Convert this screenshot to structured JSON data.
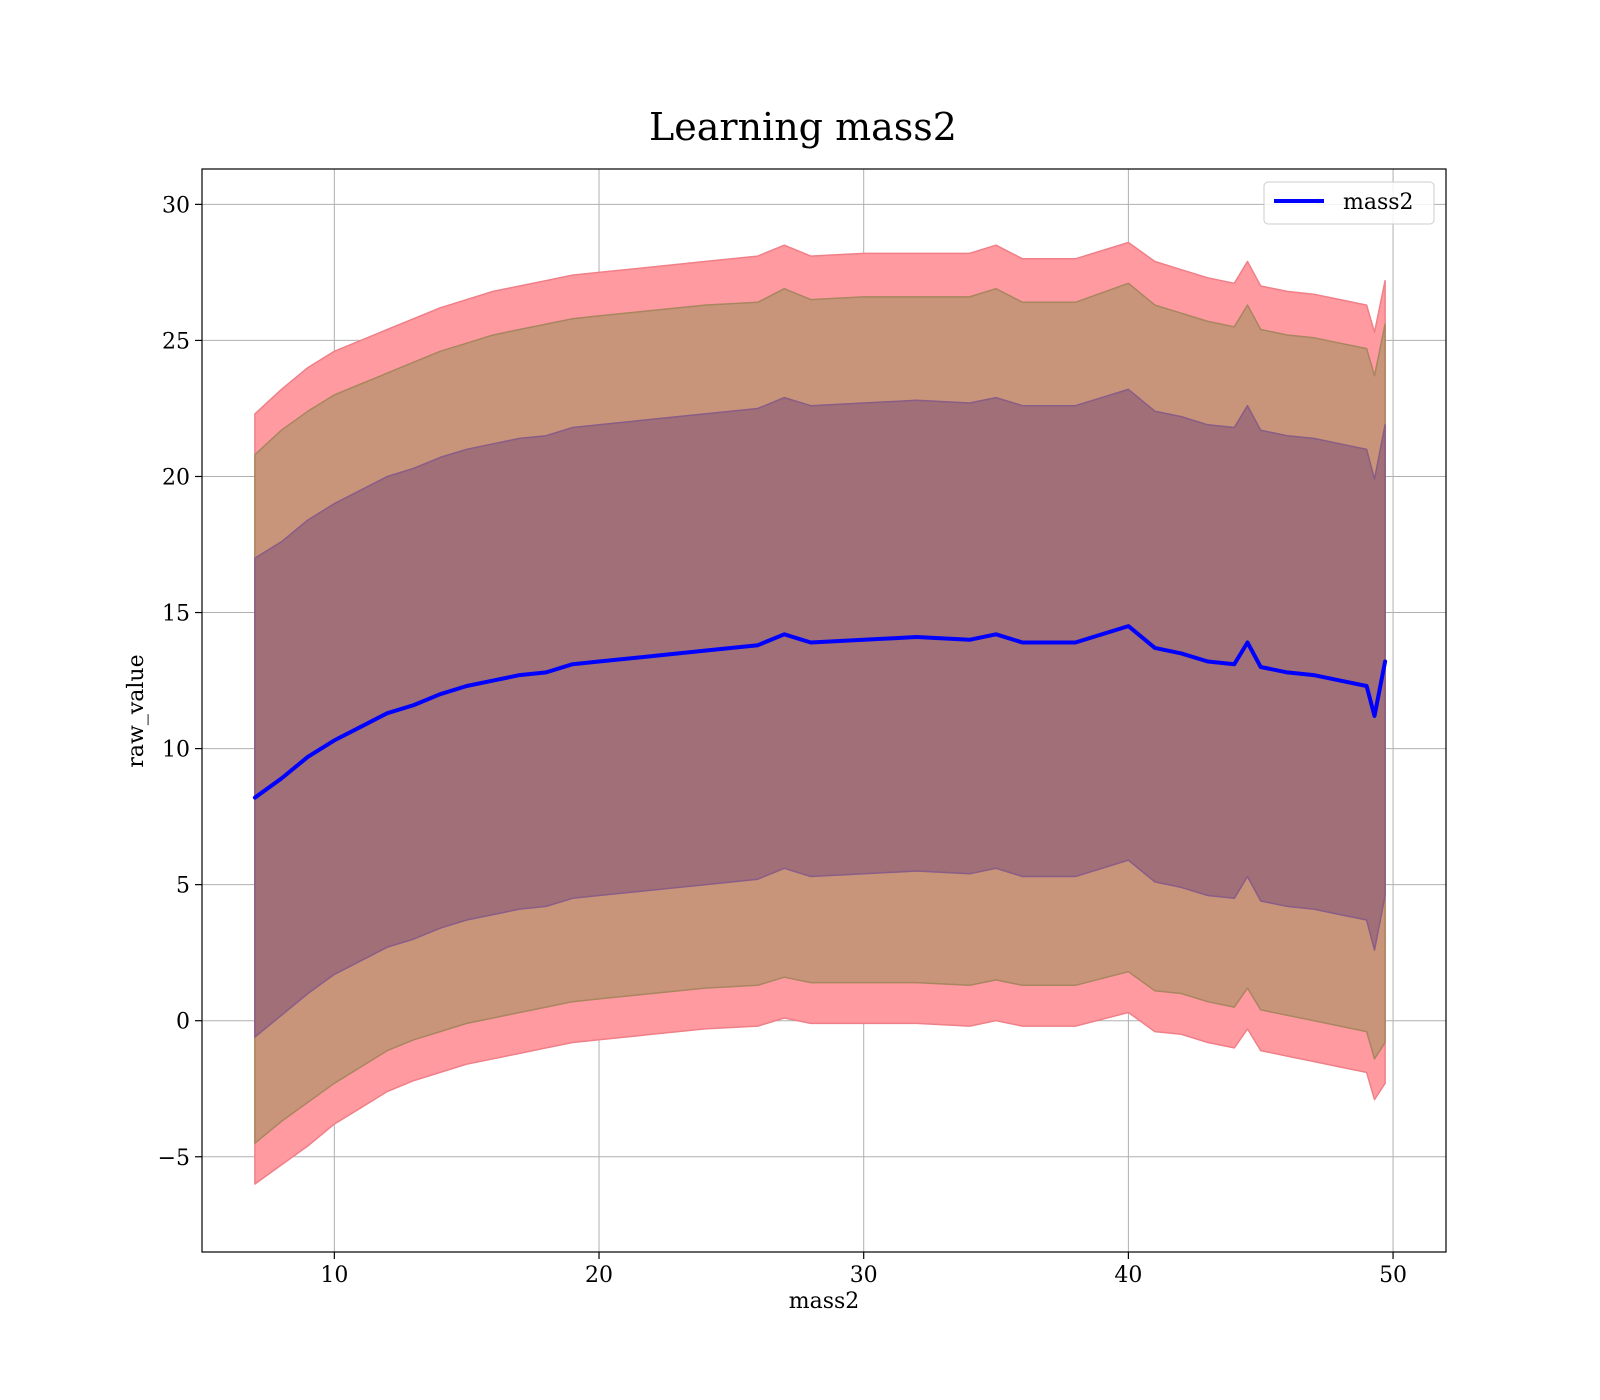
{
  "chart_data": {
    "type": "area",
    "title": "Learning mass2",
    "xlabel": "mass2",
    "ylabel": "raw_value",
    "xlim": [
      5,
      52
    ],
    "ylim": [
      -8.5,
      31.3
    ],
    "xticks": [
      10,
      20,
      30,
      40,
      50
    ],
    "yticks": [
      -5,
      0,
      5,
      10,
      15,
      20,
      25,
      30
    ],
    "xtick_labels": [
      "10",
      "20",
      "30",
      "40",
      "50"
    ],
    "ytick_labels": [
      "−5",
      "0",
      "5",
      "10",
      "15",
      "20",
      "25",
      "30"
    ],
    "grid": true,
    "legend": {
      "placement": "top-right",
      "entries": [
        "mass2"
      ]
    },
    "colors": {
      "line": "#0000ff",
      "band_outer": "#ff9aa0",
      "band_middle": "#c9957a",
      "band_inner": "#a06f78",
      "band_outer_edge": "#f07f88",
      "band_middle_edge": "#a8865f",
      "band_inner_edge": "#8a5d86",
      "grid": "#b0b0b0"
    },
    "x": [
      7,
      8,
      9,
      10,
      11,
      12,
      13,
      14,
      15,
      16,
      17,
      18,
      19,
      20,
      22,
      24,
      26,
      27,
      28,
      30,
      32,
      34,
      35,
      36,
      38,
      40,
      41,
      42,
      43,
      44,
      44.5,
      45,
      46,
      47,
      48,
      49,
      49.3,
      49.7
    ],
    "series": [
      {
        "name": "mass2",
        "values": [
          8.2,
          8.9,
          9.7,
          10.3,
          10.8,
          11.3,
          11.6,
          12.0,
          12.3,
          12.5,
          12.7,
          12.8,
          13.1,
          13.2,
          13.4,
          13.6,
          13.8,
          14.2,
          13.9,
          14.0,
          14.1,
          14.0,
          14.2,
          13.9,
          13.9,
          14.5,
          13.7,
          13.5,
          13.2,
          13.1,
          13.9,
          13.0,
          12.8,
          12.7,
          12.5,
          12.3,
          11.2,
          13.2
        ]
      }
    ],
    "bands": [
      {
        "lower": [
          -6.0,
          -5.3,
          -4.6,
          -3.8,
          -3.2,
          -2.6,
          -2.2,
          -1.9,
          -1.6,
          -1.4,
          -1.2,
          -1.0,
          -0.8,
          -0.7,
          -0.5,
          -0.3,
          -0.2,
          0.1,
          -0.1,
          -0.1,
          -0.1,
          -0.2,
          0.0,
          -0.2,
          -0.2,
          0.3,
          -0.4,
          -0.5,
          -0.8,
          -1.0,
          -0.3,
          -1.1,
          -1.3,
          -1.5,
          -1.7,
          -1.9,
          -2.9,
          -2.3
        ],
        "upper": [
          22.3,
          23.2,
          24.0,
          24.6,
          25.0,
          25.4,
          25.8,
          26.2,
          26.5,
          26.8,
          27.0,
          27.2,
          27.4,
          27.5,
          27.7,
          27.9,
          28.1,
          28.5,
          28.1,
          28.2,
          28.2,
          28.2,
          28.5,
          28.0,
          28.0,
          28.6,
          27.9,
          27.6,
          27.3,
          27.1,
          27.9,
          27.0,
          26.8,
          26.7,
          26.5,
          26.3,
          25.3,
          27.2
        ]
      },
      {
        "lower": [
          -4.5,
          -3.7,
          -3.0,
          -2.3,
          -1.7,
          -1.1,
          -0.7,
          -0.4,
          -0.1,
          0.1,
          0.3,
          0.5,
          0.7,
          0.8,
          1.0,
          1.2,
          1.3,
          1.6,
          1.4,
          1.4,
          1.4,
          1.3,
          1.5,
          1.3,
          1.3,
          1.8,
          1.1,
          1.0,
          0.7,
          0.5,
          1.2,
          0.4,
          0.2,
          0.0,
          -0.2,
          -0.4,
          -1.4,
          -0.8
        ],
        "upper": [
          20.8,
          21.7,
          22.4,
          23.0,
          23.4,
          23.8,
          24.2,
          24.6,
          24.9,
          25.2,
          25.4,
          25.6,
          25.8,
          25.9,
          26.1,
          26.3,
          26.4,
          26.9,
          26.5,
          26.6,
          26.6,
          26.6,
          26.9,
          26.4,
          26.4,
          27.1,
          26.3,
          26.0,
          25.7,
          25.5,
          26.3,
          25.4,
          25.2,
          25.1,
          24.9,
          24.7,
          23.7,
          25.6
        ]
      },
      {
        "lower": [
          -0.6,
          0.2,
          1.0,
          1.7,
          2.2,
          2.7,
          3.0,
          3.4,
          3.7,
          3.9,
          4.1,
          4.2,
          4.5,
          4.6,
          4.8,
          5.0,
          5.2,
          5.6,
          5.3,
          5.4,
          5.5,
          5.4,
          5.6,
          5.3,
          5.3,
          5.9,
          5.1,
          4.9,
          4.6,
          4.5,
          5.3,
          4.4,
          4.2,
          4.1,
          3.9,
          3.7,
          2.6,
          4.6
        ],
        "upper": [
          17.0,
          17.6,
          18.4,
          19.0,
          19.5,
          20.0,
          20.3,
          20.7,
          21.0,
          21.2,
          21.4,
          21.5,
          21.8,
          21.9,
          22.1,
          22.3,
          22.5,
          22.9,
          22.6,
          22.7,
          22.8,
          22.7,
          22.9,
          22.6,
          22.6,
          23.2,
          22.4,
          22.2,
          21.9,
          21.8,
          22.6,
          21.7,
          21.5,
          21.4,
          21.2,
          21.0,
          19.9,
          21.9
        ]
      }
    ]
  }
}
